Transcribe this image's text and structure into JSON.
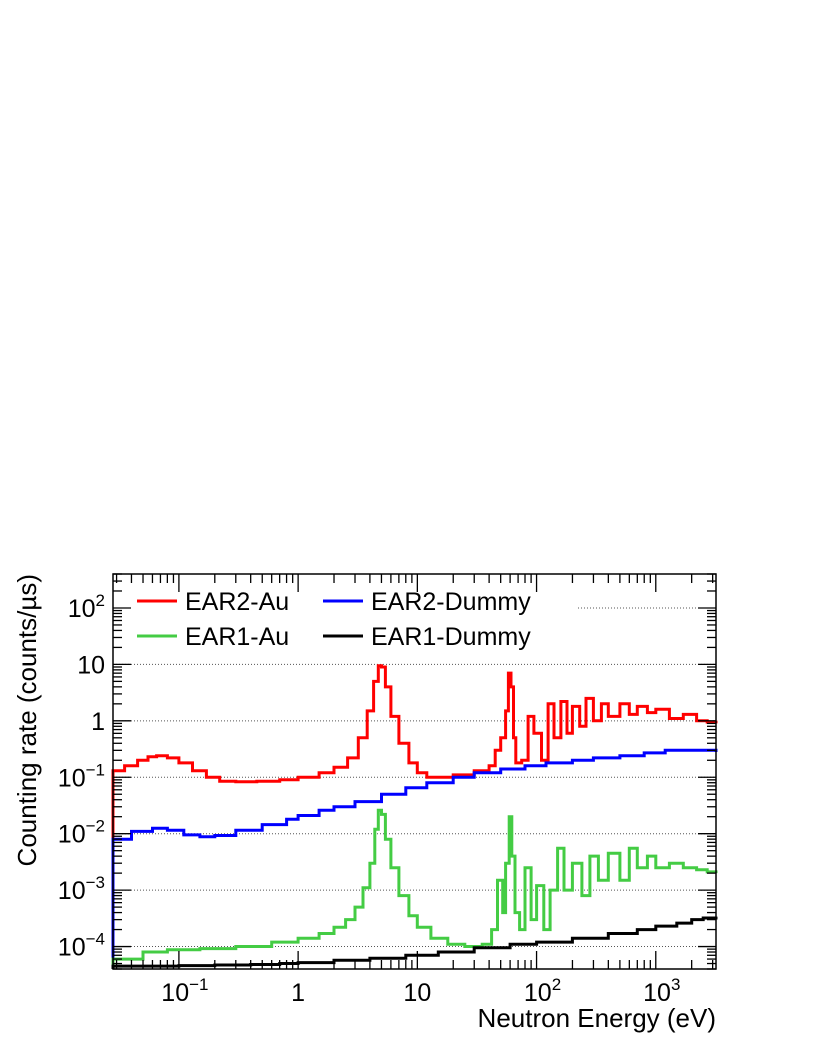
{
  "chart_data": {
    "type": "line",
    "title": "",
    "xlabel": "Neutron Energy (eV)",
    "ylabel": "Counting rate (counts/µs)",
    "xscale": "log",
    "yscale": "log",
    "xlim": [
      0.028,
      3200
    ],
    "ylim": [
      4e-05,
      400
    ],
    "grid": "horizontal dotted at decades",
    "legend_position": "top-left, two columns",
    "x_tick_labels": [
      {
        "value": 0.1,
        "base": "10",
        "exp": "−1"
      },
      {
        "value": 1,
        "base": "1",
        "exp": ""
      },
      {
        "value": 10,
        "base": "10",
        "exp": ""
      },
      {
        "value": 100,
        "base": "10",
        "exp": "2"
      },
      {
        "value": 1000,
        "base": "10",
        "exp": "3"
      }
    ],
    "y_tick_labels": [
      {
        "value": 0.0001,
        "base": "10",
        "exp": "−4"
      },
      {
        "value": 0.001,
        "base": "10",
        "exp": "−3"
      },
      {
        "value": 0.01,
        "base": "10",
        "exp": "−2"
      },
      {
        "value": 0.1,
        "base": "10",
        "exp": "−1"
      },
      {
        "value": 1,
        "base": "1",
        "exp": ""
      },
      {
        "value": 10,
        "base": "10",
        "exp": ""
      },
      {
        "value": 100,
        "base": "10",
        "exp": "2"
      }
    ],
    "series": [
      {
        "name": "EAR2-Au",
        "color": "#ff0000",
        "points": [
          [
            0.028,
            0.13
          ],
          [
            0.035,
            0.16
          ],
          [
            0.045,
            0.2
          ],
          [
            0.055,
            0.23
          ],
          [
            0.065,
            0.24
          ],
          [
            0.08,
            0.22
          ],
          [
            0.1,
            0.18
          ],
          [
            0.13,
            0.13
          ],
          [
            0.17,
            0.1
          ],
          [
            0.22,
            0.085
          ],
          [
            0.3,
            0.083
          ],
          [
            0.45,
            0.085
          ],
          [
            0.7,
            0.09
          ],
          [
            1.0,
            0.1
          ],
          [
            1.5,
            0.12
          ],
          [
            2.0,
            0.15
          ],
          [
            2.6,
            0.22
          ],
          [
            3.2,
            0.5
          ],
          [
            3.8,
            1.5
          ],
          [
            4.3,
            5.0
          ],
          [
            4.7,
            9.5
          ],
          [
            5.0,
            9.0
          ],
          [
            5.4,
            4.0
          ],
          [
            6.0,
            1.2
          ],
          [
            7.0,
            0.4
          ],
          [
            8.5,
            0.18
          ],
          [
            10,
            0.12
          ],
          [
            12,
            0.1
          ],
          [
            15,
            0.1
          ],
          [
            20,
            0.11
          ],
          [
            30,
            0.13
          ],
          [
            40,
            0.16
          ],
          [
            45,
            0.3
          ],
          [
            50,
            0.5
          ],
          [
            55,
            1.5
          ],
          [
            58,
            7.0
          ],
          [
            61,
            4.0
          ],
          [
            64,
            0.5
          ],
          [
            67,
            0.18
          ],
          [
            75,
            0.2
          ],
          [
            85,
            1.2
          ],
          [
            95,
            0.6
          ],
          [
            110,
            0.2
          ],
          [
            125,
            2.0
          ],
          [
            140,
            0.5
          ],
          [
            160,
            2.2
          ],
          [
            180,
            0.6
          ],
          [
            200,
            1.8
          ],
          [
            230,
            0.8
          ],
          [
            260,
            2.5
          ],
          [
            300,
            1.0
          ],
          [
            350,
            2.0
          ],
          [
            400,
            1.2
          ],
          [
            500,
            2.0
          ],
          [
            600,
            1.3
          ],
          [
            700,
            1.8
          ],
          [
            850,
            1.4
          ],
          [
            1000,
            1.6
          ],
          [
            1300,
            1.1
          ],
          [
            1700,
            1.3
          ],
          [
            2200,
            1.0
          ],
          [
            2700,
            0.95
          ],
          [
            3200,
            0.9
          ]
        ]
      },
      {
        "name": "EAR2-Dummy",
        "color": "#0000ff",
        "points": [
          [
            0.028,
            0.008
          ],
          [
            0.04,
            0.011
          ],
          [
            0.06,
            0.0125
          ],
          [
            0.08,
            0.0115
          ],
          [
            0.11,
            0.0095
          ],
          [
            0.15,
            0.0088
          ],
          [
            0.2,
            0.0093
          ],
          [
            0.3,
            0.0115
          ],
          [
            0.5,
            0.0145
          ],
          [
            0.8,
            0.018
          ],
          [
            1.0,
            0.021
          ],
          [
            1.5,
            0.026
          ],
          [
            2.0,
            0.03
          ],
          [
            3.0,
            0.037
          ],
          [
            5.0,
            0.05
          ],
          [
            8.0,
            0.065
          ],
          [
            12,
            0.08
          ],
          [
            20,
            0.1
          ],
          [
            30,
            0.12
          ],
          [
            50,
            0.14
          ],
          [
            80,
            0.16
          ],
          [
            120,
            0.18
          ],
          [
            200,
            0.2
          ],
          [
            300,
            0.22
          ],
          [
            500,
            0.24
          ],
          [
            800,
            0.27
          ],
          [
            1200,
            0.3
          ],
          [
            2000,
            0.3
          ],
          [
            3200,
            0.28
          ]
        ]
      },
      {
        "name": "EAR1-Au",
        "color": "#44cc44",
        "points": [
          [
            0.028,
            6e-05
          ],
          [
            0.05,
            8e-05
          ],
          [
            0.08,
            8.8e-05
          ],
          [
            0.15,
            9.2e-05
          ],
          [
            0.3,
            0.0001
          ],
          [
            0.6,
            0.00012
          ],
          [
            1.0,
            0.00014
          ],
          [
            1.5,
            0.00017
          ],
          [
            2.0,
            0.00022
          ],
          [
            2.5,
            0.0003
          ],
          [
            3.0,
            0.0005
          ],
          [
            3.5,
            0.0011
          ],
          [
            4.0,
            0.003
          ],
          [
            4.4,
            0.012
          ],
          [
            4.7,
            0.026
          ],
          [
            5.0,
            0.022
          ],
          [
            5.4,
            0.008
          ],
          [
            6.0,
            0.0025
          ],
          [
            7.0,
            0.0008
          ],
          [
            8.5,
            0.00035
          ],
          [
            10,
            0.00022
          ],
          [
            13,
            0.00014
          ],
          [
            18,
            0.00011
          ],
          [
            25,
            0.0001
          ],
          [
            35,
            0.00011
          ],
          [
            42,
            0.0002
          ],
          [
            47,
            0.0015
          ],
          [
            52,
            0.0004
          ],
          [
            55,
            0.003
          ],
          [
            59,
            0.02
          ],
          [
            62,
            0.004
          ],
          [
            66,
            0.0004
          ],
          [
            72,
            0.0002
          ],
          [
            80,
            0.0025
          ],
          [
            90,
            0.0003
          ],
          [
            100,
            0.0012
          ],
          [
            115,
            0.0002
          ],
          [
            130,
            0.001
          ],
          [
            150,
            0.0055
          ],
          [
            170,
            0.001
          ],
          [
            200,
            0.003
          ],
          [
            240,
            0.0008
          ],
          [
            280,
            0.004
          ],
          [
            330,
            0.0015
          ],
          [
            400,
            0.0045
          ],
          [
            500,
            0.0015
          ],
          [
            600,
            0.0055
          ],
          [
            700,
            0.0025
          ],
          [
            850,
            0.004
          ],
          [
            1000,
            0.0025
          ],
          [
            1300,
            0.003
          ],
          [
            1700,
            0.0025
          ],
          [
            2200,
            0.0023
          ],
          [
            2700,
            0.0021
          ],
          [
            3200,
            0.002
          ]
        ]
      },
      {
        "name": "EAR1-Dummy",
        "color": "#000000",
        "points": [
          [
            0.028,
            4.5e-05
          ],
          [
            0.05,
            4.5e-05
          ],
          [
            0.1,
            4.6e-05
          ],
          [
            0.2,
            4.7e-05
          ],
          [
            0.4,
            4.8e-05
          ],
          [
            0.7,
            5e-05
          ],
          [
            1.0,
            5.2e-05
          ],
          [
            2.0,
            5.7e-05
          ],
          [
            4.0,
            6.2e-05
          ],
          [
            8.0,
            7e-05
          ],
          [
            15,
            8e-05
          ],
          [
            30,
            9.5e-05
          ],
          [
            60,
            0.00011
          ],
          [
            100,
            0.00012
          ],
          [
            200,
            0.00014
          ],
          [
            400,
            0.00017
          ],
          [
            700,
            0.0002
          ],
          [
            1000,
            0.00023
          ],
          [
            1500,
            0.00026
          ],
          [
            2000,
            0.0003
          ],
          [
            2500,
            0.00032
          ],
          [
            3200,
            0.00034
          ]
        ]
      }
    ]
  }
}
